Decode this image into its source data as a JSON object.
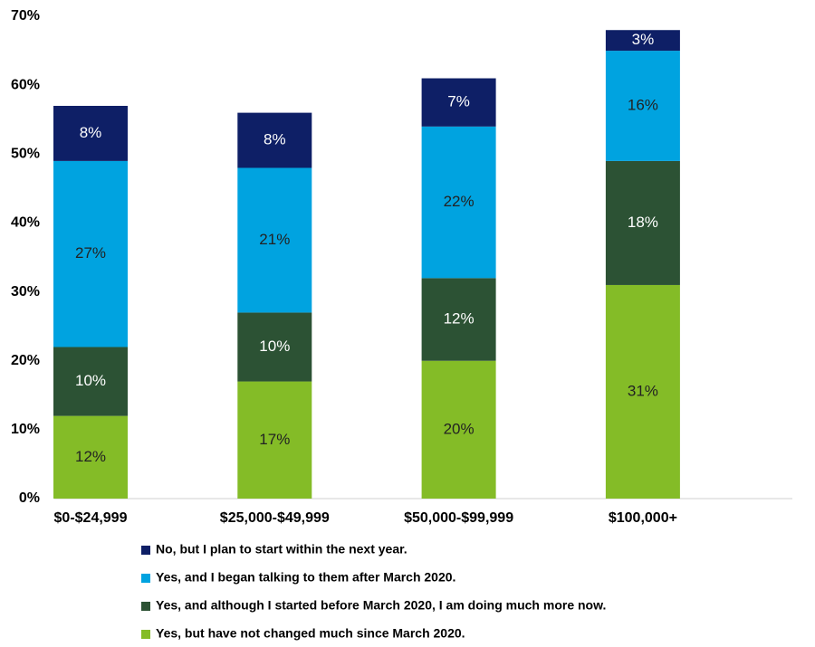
{
  "chart_data": {
    "type": "stacked_bar",
    "categories": [
      "$0-$24,999",
      "$25,000-$49,999",
      "$50,000-$99,999",
      "$100,000+"
    ],
    "series": [
      {
        "name": "Yes, but have not changed much since March 2020.",
        "color": "#84bc27",
        "values": [
          12,
          17,
          20,
          31
        ],
        "value_labels": [
          "12%",
          "17%",
          "20%",
          "31%"
        ]
      },
      {
        "name": "Yes, and although I started before March 2020, I am doing much more now.",
        "color": "#2c5234",
        "values": [
          10,
          10,
          12,
          18
        ],
        "value_labels": [
          "10%",
          "10%",
          "12%",
          "18%"
        ]
      },
      {
        "name": "Yes, and I began talking to them after March 2020.",
        "color": "#00a3e0",
        "values": [
          27,
          21,
          22,
          16
        ],
        "value_labels": [
          "27%",
          "21%",
          "22%",
          "16%"
        ]
      },
      {
        "name": "No, but I plan to start within the next year.",
        "color": "#0e1f66",
        "values": [
          8,
          8,
          7,
          3
        ],
        "value_labels": [
          "8%",
          "8%",
          "7%",
          "3%"
        ]
      }
    ],
    "ylim": [
      0,
      70
    ],
    "yticks": [
      {
        "value": 0,
        "label": "0%"
      },
      {
        "value": 10,
        "label": "10%"
      },
      {
        "value": 20,
        "label": "20%"
      },
      {
        "value": 30,
        "label": "30%"
      },
      {
        "value": 40,
        "label": "40%"
      },
      {
        "value": 50,
        "label": "50%"
      },
      {
        "value": 60,
        "label": "60%"
      },
      {
        "value": 70,
        "label": "70%"
      }
    ],
    "grid": false
  }
}
